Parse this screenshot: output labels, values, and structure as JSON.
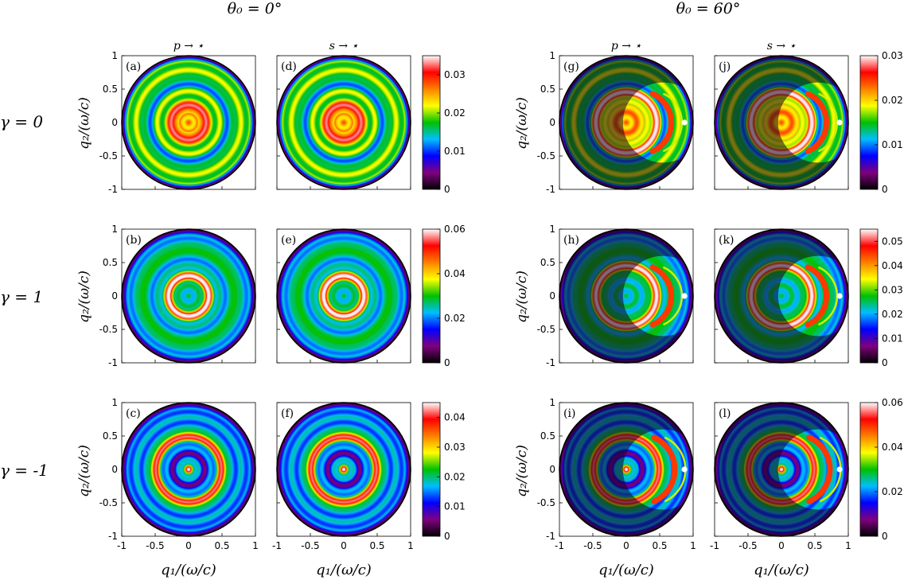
{
  "headers": {
    "left": "θ₀ = 0°",
    "right": "θ₀ = 60°"
  },
  "column_titles": [
    "p → ⋆",
    "s → ⋆",
    "p → ⋆",
    "s → ⋆"
  ],
  "row_labels": [
    "γ = 0",
    "γ = 1",
    "γ = -1"
  ],
  "axis_labels": {
    "x": "q₁/(ω/c)",
    "y": "q₂/(ω/c)"
  },
  "axis_ticks": [
    "-1",
    "-0.5",
    "0",
    "0.5",
    "1"
  ],
  "colors": {
    "colormap": [
      "#000000",
      "#800080",
      "#0000ff",
      "#00bfff",
      "#00c000",
      "#ffff00",
      "#ff8000",
      "#ff0000",
      "#ffffff"
    ]
  },
  "chart_data": [
    {
      "type": "heatmap",
      "panel": "(a)",
      "theta0_deg": 0,
      "gamma": 0,
      "polarization": "p → ⋆",
      "xlim": [
        -1,
        1
      ],
      "ylim": [
        -1,
        1
      ],
      "peak_ring_radius": 0.25,
      "center_value": 0.025,
      "dot": null,
      "crescent": false
    },
    {
      "type": "heatmap",
      "panel": "(d)",
      "theta0_deg": 0,
      "gamma": 0,
      "polarization": "s → ⋆",
      "xlim": [
        -1,
        1
      ],
      "ylim": [
        -1,
        1
      ],
      "peak_ring_radius": 0.25,
      "center_value": 0.025,
      "dot": null,
      "crescent": false
    },
    {
      "type": "heatmap",
      "panel": "(b)",
      "theta0_deg": 0,
      "gamma": 1,
      "polarization": "p → ⋆",
      "xlim": [
        -1,
        1
      ],
      "ylim": [
        -1,
        1
      ],
      "peak_ring_radius": 0.3,
      "center_value": 0.015,
      "dot": null,
      "crescent": false
    },
    {
      "type": "heatmap",
      "panel": "(e)",
      "theta0_deg": 0,
      "gamma": 1,
      "polarization": "s → ⋆",
      "xlim": [
        -1,
        1
      ],
      "ylim": [
        -1,
        1
      ],
      "peak_ring_radius": 0.3,
      "center_value": 0.015,
      "dot": null,
      "crescent": false
    },
    {
      "type": "heatmap",
      "panel": "(c)",
      "theta0_deg": 0,
      "gamma": -1,
      "polarization": "p → ⋆",
      "xlim": [
        -1,
        1
      ],
      "ylim": [
        -1,
        1
      ],
      "peak_ring_radius": 0.5,
      "center_value": 0.042,
      "dot": null,
      "crescent": false
    },
    {
      "type": "heatmap",
      "panel": "(f)",
      "theta0_deg": 0,
      "gamma": -1,
      "polarization": "s → ⋆",
      "xlim": [
        -1,
        1
      ],
      "ylim": [
        -1,
        1
      ],
      "peak_ring_radius": 0.5,
      "center_value": 0.042,
      "dot": null,
      "crescent": false
    },
    {
      "type": "heatmap",
      "panel": "(g)",
      "theta0_deg": 60,
      "gamma": 0,
      "polarization": "p → ⋆",
      "xlim": [
        -1,
        1
      ],
      "ylim": [
        -1,
        1
      ],
      "peak_ring_radius": 0.45,
      "center_value": 0.012,
      "dot": [
        0.87,
        0
      ],
      "crescent": true
    },
    {
      "type": "heatmap",
      "panel": "(j)",
      "theta0_deg": 60,
      "gamma": 0,
      "polarization": "s → ⋆",
      "xlim": [
        -1,
        1
      ],
      "ylim": [
        -1,
        1
      ],
      "peak_ring_radius": 0.45,
      "center_value": 0.012,
      "dot": [
        0.87,
        0
      ],
      "crescent": true
    },
    {
      "type": "heatmap",
      "panel": "(h)",
      "theta0_deg": 60,
      "gamma": 1,
      "polarization": "p → ⋆",
      "xlim": [
        -1,
        1
      ],
      "ylim": [
        -1,
        1
      ],
      "peak_ring_radius": 0.45,
      "center_value": 0.008,
      "dot": [
        0.87,
        0
      ],
      "crescent": true
    },
    {
      "type": "heatmap",
      "panel": "(k)",
      "theta0_deg": 60,
      "gamma": 1,
      "polarization": "s → ⋆",
      "xlim": [
        -1,
        1
      ],
      "ylim": [
        -1,
        1
      ],
      "peak_ring_radius": 0.45,
      "center_value": 0.008,
      "dot": [
        0.87,
        0
      ],
      "crescent": true
    },
    {
      "type": "heatmap",
      "panel": "(i)",
      "theta0_deg": 60,
      "gamma": -1,
      "polarization": "p → ⋆",
      "xlim": [
        -1,
        1
      ],
      "ylim": [
        -1,
        1
      ],
      "peak_ring_radius": 0.5,
      "center_value": 0.014,
      "dot": [
        0.87,
        0
      ],
      "crescent": true
    },
    {
      "type": "heatmap",
      "panel": "(l)",
      "theta0_deg": 60,
      "gamma": -1,
      "polarization": "s → ⋆",
      "xlim": [
        -1,
        1
      ],
      "ylim": [
        -1,
        1
      ],
      "peak_ring_radius": 0.5,
      "center_value": 0.014,
      "dot": [
        0.87,
        0
      ],
      "crescent": true
    }
  ],
  "colorbars": [
    {
      "id": "cb-0-0",
      "min": 0,
      "max": 0.035,
      "ticks": [
        "0",
        "0.01",
        "0.02",
        "0.03"
      ],
      "tick_values": [
        0,
        0.01,
        0.02,
        0.03
      ]
    },
    {
      "id": "cb-0-60",
      "min": 0,
      "max": 0.03,
      "ticks": [
        "0",
        "0.01",
        "0.02",
        "0.03"
      ],
      "tick_values": [
        0,
        0.01,
        0.02,
        0.03
      ]
    },
    {
      "id": "cb-1-0",
      "min": 0,
      "max": 0.06,
      "ticks": [
        "0",
        "0.02",
        "0.04",
        "0.06"
      ],
      "tick_values": [
        0,
        0.02,
        0.04,
        0.06
      ]
    },
    {
      "id": "cb-1-60",
      "min": 0,
      "max": 0.055,
      "ticks": [
        "0",
        "0.01",
        "0.02",
        "0.03",
        "0.04",
        "0.05"
      ],
      "tick_values": [
        0,
        0.01,
        0.02,
        0.03,
        0.04,
        0.05
      ]
    },
    {
      "id": "cb-2-0",
      "min": 0,
      "max": 0.045,
      "ticks": [
        "0",
        "0.01",
        "0.02",
        "0.03",
        "0.04"
      ],
      "tick_values": [
        0,
        0.01,
        0.02,
        0.03,
        0.04
      ]
    },
    {
      "id": "cb-2-60",
      "min": 0,
      "max": 0.06,
      "ticks": [
        "0",
        "0.02",
        "0.04",
        "0.06"
      ],
      "tick_values": [
        0,
        0.02,
        0.04,
        0.06
      ]
    }
  ]
}
